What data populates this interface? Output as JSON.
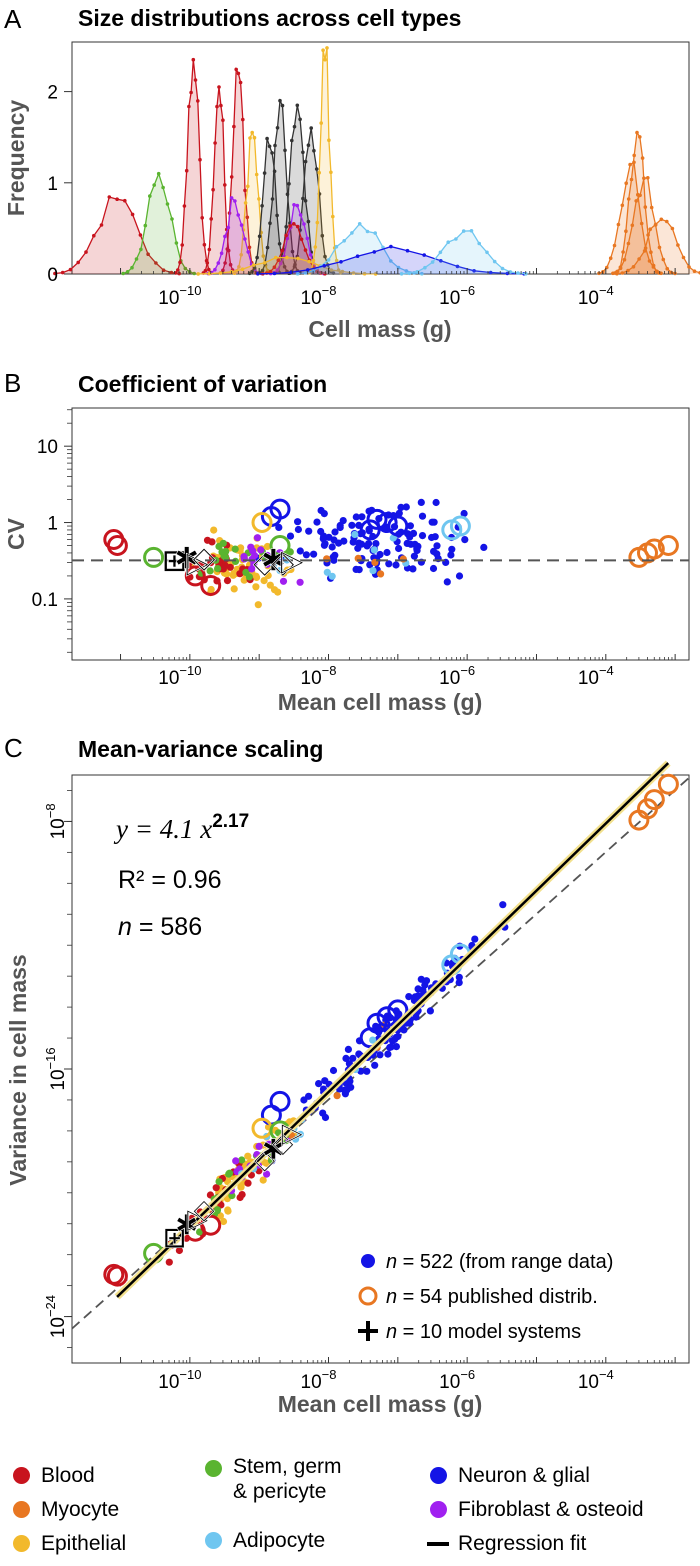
{
  "panels": {
    "a": {
      "letter": "A",
      "title": "Size distributions across cell types",
      "ylabel": "Frequency",
      "xlabel": "Cell mass  (g)"
    },
    "b": {
      "letter": "B",
      "title": "Coefficient of variation",
      "ylabel": "CV",
      "xlabel": "Mean cell mass  (g)"
    },
    "c": {
      "letter": "C",
      "title": "Mean-variance scaling",
      "ylabel": "Variance in cell mass",
      "xlabel": "Mean cell mass  (g)",
      "equation_prefix": "y = 4.1 x",
      "equation_exponent": "2.17",
      "r2_text": "R² = 0.96",
      "n_label": "n",
      "n_value": " = 586"
    }
  },
  "series_legend": [
    {
      "marker": "filled-dot",
      "n_label": "n",
      "text": " = 522 (from range data)",
      "color": "#1414e6"
    },
    {
      "marker": "open-circle",
      "n_label": "n",
      "text": " = 54 published distrib.",
      "color": "#e87722"
    },
    {
      "marker": "plus",
      "n_label": "n",
      "text": " = 10 model systems",
      "color": "#000000"
    }
  ],
  "category_legend": [
    {
      "label": "Blood",
      "color": "#c8141e"
    },
    {
      "label": "Myocyte",
      "color": "#e87722"
    },
    {
      "label": "Epithelial",
      "color": "#f2b92c"
    },
    {
      "label": "Stem, germ",
      "label2": "& pericyte",
      "color": "#5ab430"
    },
    {
      "label": "Adipocyte",
      "color": "#6fc6f0"
    },
    {
      "label": "Neuron & glial",
      "color": "#1414e6"
    },
    {
      "label": "Fibroblast & osteoid",
      "color": "#a020f0"
    },
    {
      "label": "Regression fit",
      "color": "#000000",
      "marker": "line"
    }
  ],
  "chart_data": [
    {
      "type": "area",
      "title": "Size distributions across cell types",
      "xlabel": "Cell mass  (g)",
      "ylabel": "Frequency",
      "xscale": "log",
      "xlim_log10": [
        -11.7,
        -2.8
      ],
      "ylim": [
        0,
        2.5
      ],
      "x_ticks": [
        "10^-10",
        "10^-8",
        "10^-6",
        "10^-4"
      ],
      "y_ticks": [
        0,
        1,
        2
      ],
      "series": [
        {
          "category": "Blood",
          "color": "#c8141e",
          "peak_mass_log10": -11.05,
          "peak_frequency": 0.82,
          "width": 0.28
        },
        {
          "category": "Stem, germ & pericyte",
          "color": "#5ab430",
          "peak_mass_log10": -10.45,
          "peak_frequency": 1.1,
          "width": 0.16
        },
        {
          "category": "Blood",
          "color": "#c8141e",
          "peak_mass_log10": -9.95,
          "peak_frequency": 2.35,
          "width": 0.08
        },
        {
          "category": "Blood",
          "color": "#c8141e",
          "peak_mass_log10": -9.58,
          "peak_frequency": 2.05,
          "width": 0.07
        },
        {
          "category": "Blood",
          "color": "#c8141e",
          "peak_mass_log10": -9.3,
          "peak_frequency": 2.2,
          "width": 0.08
        },
        {
          "category": "Epithelial",
          "color": "#f2b92c",
          "peak_mass_log10": -9.1,
          "peak_frequency": 1.55,
          "width": 0.08
        },
        {
          "category": "Fibroblast & osteoid",
          "color": "#a020f0",
          "peak_mass_log10": -9.35,
          "peak_frequency": 0.8,
          "width": 0.12
        },
        {
          "category": "Neuron & glial",
          "color": "#333333",
          "peak_mass_log10": -8.85,
          "peak_frequency": 1.4,
          "width": 0.09
        },
        {
          "category": "Neuron & glial",
          "color": "#333333",
          "peak_mass_log10": -8.7,
          "peak_frequency": 1.9,
          "width": 0.09
        },
        {
          "category": "Neuron & glial",
          "color": "#333333",
          "peak_mass_log10": -8.45,
          "peak_frequency": 1.85,
          "width": 0.1
        },
        {
          "category": "Neuron & glial",
          "color": "#333333",
          "peak_mass_log10": -8.25,
          "peak_frequency": 1.6,
          "width": 0.1
        },
        {
          "category": "Fibroblast & osteoid",
          "color": "#a020f0",
          "peak_mass_log10": -8.45,
          "peak_frequency": 0.75,
          "width": 0.12
        },
        {
          "category": "Blood",
          "color": "#c8141e",
          "peak_mass_log10": -8.5,
          "peak_frequency": 0.55,
          "width": 0.14
        },
        {
          "category": "Epithelial",
          "color": "#f2b92c",
          "peak_mass_log10": -8.05,
          "peak_frequency": 2.35,
          "width": 0.07
        },
        {
          "category": "Epithelial",
          "color": "#f2b92c",
          "peak_mass_log10": -8.6,
          "peak_frequency": 0.18,
          "width": 0.4
        },
        {
          "category": "Adipocyte",
          "color": "#6fc6f0",
          "peak_mass_log10": -7.55,
          "peak_frequency": 0.55,
          "width": 0.28
        },
        {
          "category": "Neuron & glial",
          "color": "#1414e6",
          "peak_mass_log10": -7.1,
          "peak_frequency": 0.3,
          "width": 0.6
        },
        {
          "category": "Adipocyte",
          "color": "#6fc6f0",
          "peak_mass_log10": -6.05,
          "peak_frequency": 0.47,
          "width": 0.28
        },
        {
          "category": "Myocyte",
          "color": "#e87722",
          "peak_mass_log10": -3.55,
          "peak_frequency": 1.55,
          "width": 0.1
        },
        {
          "category": "Myocyte",
          "color": "#e87722",
          "peak_mass_log10": -3.65,
          "peak_frequency": 1.2,
          "width": 0.14
        },
        {
          "category": "Myocyte",
          "color": "#e87722",
          "peak_mass_log10": -3.45,
          "peak_frequency": 1.05,
          "width": 0.14
        },
        {
          "category": "Myocyte",
          "color": "#e87722",
          "peak_mass_log10": -3.2,
          "peak_frequency": 0.6,
          "width": 0.2
        }
      ]
    },
    {
      "type": "scatter",
      "title": "Coefficient of variation",
      "xlabel": "Mean cell mass  (g)",
      "ylabel": "CV",
      "xscale": "log",
      "yscale": "log",
      "xlim_log10": [
        -11.7,
        -2.8
      ],
      "ylim_log10": [
        -1.8,
        1.5
      ],
      "x_ticks": [
        "10^-10",
        "10^-8",
        "10^-6",
        "10^-4"
      ],
      "y_ticks": [
        "0.1",
        "1",
        "10"
      ],
      "reference_line_cv": 0.32,
      "points": [
        {
          "x": 8e-12,
          "y": 0.6,
          "category": "Blood",
          "marker": "open"
        },
        {
          "x": 9e-12,
          "y": 0.5,
          "category": "Blood",
          "marker": "open"
        },
        {
          "x": 1.2e-10,
          "y": 0.2,
          "category": "Blood",
          "marker": "open"
        },
        {
          "x": 2e-10,
          "y": 0.15,
          "category": "Blood",
          "marker": "open"
        },
        {
          "x": 3e-11,
          "y": 0.35,
          "category": "Stem, germ & pericyte",
          "marker": "open"
        },
        {
          "x": 1.5e-09,
          "y": 1.2,
          "category": "Neuron & glial",
          "marker": "open"
        },
        {
          "x": 2e-09,
          "y": 1.5,
          "category": "Neuron & glial",
          "marker": "open"
        },
        {
          "x": 4e-08,
          "y": 0.8,
          "category": "Neuron & glial",
          "marker": "open"
        },
        {
          "x": 5e-08,
          "y": 1.1,
          "category": "Neuron & glial",
          "marker": "open"
        },
        {
          "x": 7e-08,
          "y": 1.0,
          "category": "Neuron & glial",
          "marker": "open"
        },
        {
          "x": 1e-07,
          "y": 0.9,
          "category": "Neuron & glial",
          "marker": "open"
        },
        {
          "x": 6e-07,
          "y": 0.8,
          "category": "Adipocyte",
          "marker": "open"
        },
        {
          "x": 8e-07,
          "y": 0.9,
          "category": "Adipocyte",
          "marker": "open"
        },
        {
          "x": 0.0003,
          "y": 0.35,
          "category": "Myocyte",
          "marker": "open"
        },
        {
          "x": 0.0004,
          "y": 0.4,
          "category": "Myocyte",
          "marker": "open"
        },
        {
          "x": 0.0005,
          "y": 0.45,
          "category": "Myocyte",
          "marker": "open"
        },
        {
          "x": 0.0008,
          "y": 0.5,
          "category": "Myocyte",
          "marker": "open"
        },
        {
          "x": 1.1e-09,
          "y": 1.0,
          "category": "Epithelial",
          "marker": "open"
        },
        {
          "x": 2e-09,
          "y": 0.5,
          "category": "Stem, germ & pericyte",
          "marker": "open"
        }
      ],
      "model_systems": [
        {
          "x": 6e-11,
          "y": 0.32,
          "symbol": "⊞"
        },
        {
          "x": 9e-11,
          "y": 0.34,
          "symbol": "✱"
        },
        {
          "x": 1.3e-10,
          "y": 0.3,
          "symbol": "▷"
        },
        {
          "x": 1.6e-10,
          "y": 0.35,
          "symbol": "◇"
        },
        {
          "x": 1.2e-09,
          "y": 0.3,
          "symbol": "◇"
        },
        {
          "x": 1.6e-09,
          "y": 0.32,
          "symbol": "✱"
        },
        {
          "x": 2.2e-09,
          "y": 0.3,
          "symbol": "◇"
        },
        {
          "x": 3e-09,
          "y": 0.32,
          "symbol": "▷"
        }
      ]
    },
    {
      "type": "scatter",
      "title": "Mean-variance scaling",
      "xlabel": "Mean cell mass  (g)",
      "ylabel": "Variance in cell mass",
      "xscale": "log",
      "yscale": "log",
      "xlim_log10": [
        -11.7,
        -2.8
      ],
      "ylim_log10": [
        -25.5,
        -6.5
      ],
      "x_ticks": [
        "10^-10",
        "10^-8",
        "10^-6",
        "10^-4"
      ],
      "y_ticks": [
        "10^-24",
        "10^-16",
        "10^-8"
      ],
      "fit": {
        "coefficient": 4.1,
        "exponent": 2.17,
        "r2": 0.96,
        "n": 586
      },
      "counts": {
        "range_data": 522,
        "published_distributions": 54,
        "model_systems": 10
      }
    }
  ]
}
